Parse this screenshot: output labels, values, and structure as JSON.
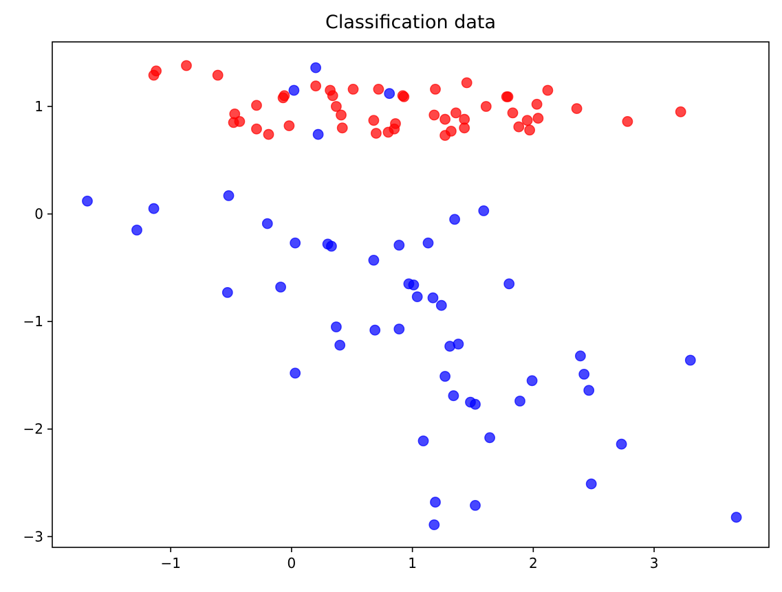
{
  "chart_data": {
    "type": "scatter",
    "title": "Classification data",
    "xlabel": "",
    "ylabel": "",
    "xlim": [
      -1.98,
      3.95
    ],
    "ylim": [
      -3.1,
      1.6
    ],
    "xticks": [
      -1,
      0,
      1,
      2,
      3
    ],
    "yticks": [
      -3,
      -2,
      -1,
      0,
      1
    ],
    "xtick_labels": [
      "−1",
      "0",
      "1",
      "2",
      "3"
    ],
    "ytick_labels": [
      "−3",
      "−2",
      "−1",
      "0",
      "1"
    ],
    "grid": false,
    "series": [
      {
        "color": "#ff0000",
        "points": [
          [
            -1.12,
            1.33
          ],
          [
            -1.14,
            1.29
          ],
          [
            -0.87,
            1.38
          ],
          [
            -0.61,
            1.29
          ],
          [
            -0.47,
            0.93
          ],
          [
            -0.48,
            0.85
          ],
          [
            -0.43,
            0.86
          ],
          [
            -0.29,
            1.01
          ],
          [
            -0.29,
            0.79
          ],
          [
            -0.19,
            0.74
          ],
          [
            -0.06,
            1.1
          ],
          [
            -0.07,
            1.08
          ],
          [
            -0.02,
            0.82
          ],
          [
            0.2,
            1.19
          ],
          [
            0.32,
            1.15
          ],
          [
            0.34,
            1.1
          ],
          [
            0.37,
            1.0
          ],
          [
            0.41,
            0.92
          ],
          [
            0.42,
            0.8
          ],
          [
            0.51,
            1.16
          ],
          [
            0.68,
            0.87
          ],
          [
            0.7,
            0.75
          ],
          [
            0.72,
            1.16
          ],
          [
            0.8,
            0.76
          ],
          [
            0.85,
            0.79
          ],
          [
            0.86,
            0.84
          ],
          [
            0.92,
            1.1
          ],
          [
            0.93,
            1.09
          ],
          [
            1.18,
            0.92
          ],
          [
            1.19,
            1.16
          ],
          [
            1.27,
            0.88
          ],
          [
            1.27,
            0.73
          ],
          [
            1.32,
            0.77
          ],
          [
            1.36,
            0.94
          ],
          [
            1.43,
            0.88
          ],
          [
            1.43,
            0.8
          ],
          [
            1.45,
            1.22
          ],
          [
            1.61,
            1.0
          ],
          [
            1.78,
            1.09
          ],
          [
            1.79,
            1.09
          ],
          [
            1.83,
            0.94
          ],
          [
            1.88,
            0.81
          ],
          [
            1.95,
            0.87
          ],
          [
            1.97,
            0.78
          ],
          [
            2.03,
            1.02
          ],
          [
            2.04,
            0.89
          ],
          [
            2.12,
            1.15
          ],
          [
            2.36,
            0.98
          ],
          [
            2.78,
            0.86
          ],
          [
            3.22,
            0.95
          ]
        ]
      },
      {
        "color": "#0000ff",
        "points": [
          [
            0.2,
            1.36
          ],
          [
            0.02,
            1.15
          ],
          [
            0.81,
            1.12
          ],
          [
            0.22,
            0.74
          ],
          [
            -1.69,
            0.12
          ],
          [
            -1.14,
            0.05
          ],
          [
            -1.28,
            -0.15
          ],
          [
            -0.52,
            0.17
          ],
          [
            -0.2,
            -0.09
          ],
          [
            0.03,
            -0.27
          ],
          [
            0.3,
            -0.28
          ],
          [
            0.33,
            -0.3
          ],
          [
            0.68,
            -0.43
          ],
          [
            0.89,
            -0.29
          ],
          [
            1.13,
            -0.27
          ],
          [
            1.35,
            -0.05
          ],
          [
            1.59,
            0.03
          ],
          [
            -0.53,
            -0.73
          ],
          [
            -0.09,
            -0.68
          ],
          [
            0.97,
            -0.65
          ],
          [
            1.01,
            -0.66
          ],
          [
            1.04,
            -0.77
          ],
          [
            1.17,
            -0.78
          ],
          [
            1.24,
            -0.85
          ],
          [
            1.8,
            -0.65
          ],
          [
            0.37,
            -1.05
          ],
          [
            0.4,
            -1.22
          ],
          [
            0.69,
            -1.08
          ],
          [
            0.89,
            -1.07
          ],
          [
            1.31,
            -1.23
          ],
          [
            1.38,
            -1.21
          ],
          [
            0.03,
            -1.48
          ],
          [
            1.27,
            -1.51
          ],
          [
            1.34,
            -1.69
          ],
          [
            1.48,
            -1.75
          ],
          [
            1.52,
            -1.77
          ],
          [
            1.89,
            -1.74
          ],
          [
            1.99,
            -1.55
          ],
          [
            2.39,
            -1.32
          ],
          [
            2.42,
            -1.49
          ],
          [
            2.46,
            -1.64
          ],
          [
            3.3,
            -1.36
          ],
          [
            1.09,
            -2.11
          ],
          [
            1.64,
            -2.08
          ],
          [
            2.73,
            -2.14
          ],
          [
            2.48,
            -2.51
          ],
          [
            1.19,
            -2.68
          ],
          [
            1.52,
            -2.71
          ],
          [
            1.18,
            -2.89
          ],
          [
            3.68,
            -2.82
          ]
        ]
      }
    ]
  }
}
